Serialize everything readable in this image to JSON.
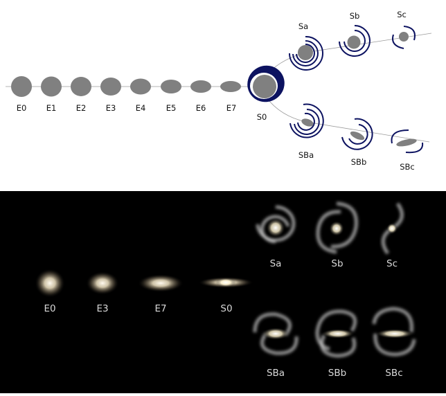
{
  "diagram": {
    "top_labels": {
      "E0": "E0",
      "E1": "E1",
      "E2": "E2",
      "E3": "E3",
      "E4": "E4",
      "E5": "E5",
      "E6": "E6",
      "E7": "E7",
      "S0": "S0",
      "Sa": "Sa",
      "Sb": "Sb",
      "Sc": "Sc",
      "SBa": "SBa",
      "SBb": "SBb",
      "SBc": "SBc"
    },
    "bottom_labels": {
      "E0": "E0",
      "E3": "E3",
      "E7": "E7",
      "S0": "S0",
      "Sa": "Sa",
      "Sb": "Sb",
      "Sc": "Sc",
      "SBa": "SBa",
      "SBb": "SBb",
      "SBc": "SBc"
    },
    "colors": {
      "schematic_fill": "#808080",
      "spiral_arm": "#0c1260",
      "photo_background": "#000000",
      "photo_label": "#d9d9d9",
      "galaxy_glow": "#fff6dc"
    }
  }
}
